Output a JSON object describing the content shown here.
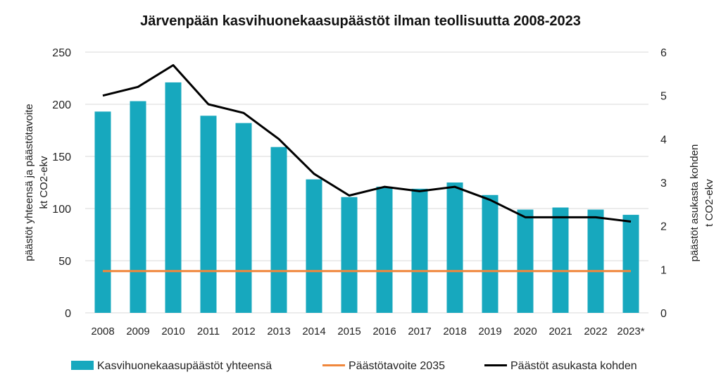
{
  "chart_data": {
    "type": "bar",
    "title": "Järvenpään kasvihuonekaasupäästöt ilman teollisuutta 2008-2023",
    "categories": [
      "2008",
      "2009",
      "2010",
      "2011",
      "2012",
      "2013",
      "2014",
      "2015",
      "2016",
      "2017",
      "2018",
      "2019",
      "2020",
      "2021",
      "2022",
      "2023*"
    ],
    "ylabel_left_lines": [
      "päästöt yhteensä ja päästötavoite",
      "kt CO2-ekv"
    ],
    "ylabel_right_lines": [
      "päästöt asukasta kohden",
      "t CO2-ekv"
    ],
    "ylim_left": [
      0,
      250
    ],
    "yticks_left": [
      "0",
      "50",
      "100",
      "150",
      "200",
      "250"
    ],
    "ylim_right": [
      0,
      6
    ],
    "yticks_right": [
      "0",
      "1",
      "2",
      "3",
      "4",
      "5",
      "6"
    ],
    "grid": true,
    "legend_position": "bottom",
    "series": [
      {
        "name": "Kasvihuonekaasupäästöt yhteensä",
        "type": "bar",
        "axis": "left",
        "color": "#17A8BE",
        "values": [
          193,
          203,
          221,
          189,
          182,
          159,
          128,
          111,
          121,
          119,
          125,
          113,
          99,
          101,
          99,
          94
        ]
      },
      {
        "name": "Päästötavoite 2035",
        "type": "line",
        "axis": "left",
        "color": "#F0873C",
        "values": [
          40,
          40,
          40,
          40,
          40,
          40,
          40,
          40,
          40,
          40,
          40,
          40,
          40,
          40,
          40,
          40
        ]
      },
      {
        "name": "Päästöt asukasta kohden",
        "type": "line",
        "axis": "right",
        "color": "#000000",
        "values": [
          5.0,
          5.2,
          5.7,
          4.8,
          4.6,
          4.0,
          3.2,
          2.7,
          2.9,
          2.8,
          2.9,
          2.6,
          2.2,
          2.2,
          2.2,
          2.1
        ]
      }
    ]
  }
}
